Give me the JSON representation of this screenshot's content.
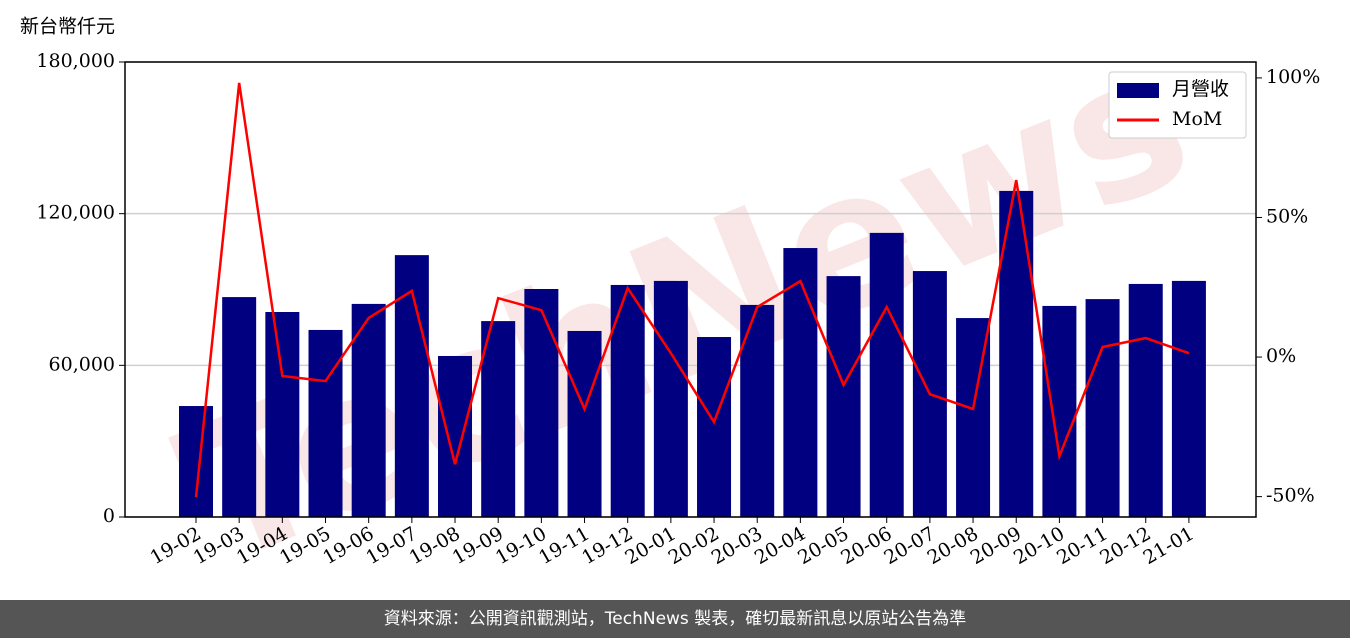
{
  "chart_data": {
    "type": "bar-line",
    "y_label": "新台幣仟元",
    "watermark": "TechNews",
    "categories": [
      "19-02",
      "19-03",
      "19-04",
      "19-05",
      "19-06",
      "19-07",
      "19-08",
      "19-09",
      "19-10",
      "19-11",
      "19-12",
      "20-01",
      "20-02",
      "20-03",
      "20-04",
      "20-05",
      "20-06",
      "20-07",
      "20-08",
      "20-09",
      "20-10",
      "20-11",
      "20-12",
      "21-01"
    ],
    "series": [
      {
        "name": "月營收",
        "type": "bar",
        "color": "#000080",
        "values": [
          43900,
          87000,
          81100,
          74000,
          84300,
          103600,
          63700,
          77500,
          90200,
          73600,
          91800,
          93400,
          71200,
          83900,
          106400,
          95300,
          112400,
          97300,
          78700,
          129000,
          83500,
          86200,
          92200,
          93400
        ]
      },
      {
        "name": "MoM",
        "type": "line",
        "axis": "y2",
        "color": "#ff0000",
        "values": [
          -50.2,
          98.2,
          -6.8,
          -8.6,
          14.0,
          23.7,
          -38.4,
          21.1,
          16.8,
          -18.6,
          24.7,
          1.4,
          -23.3,
          17.9,
          27.2,
          -10.0,
          17.9,
          -13.3,
          -18.6,
          63.4,
          -35.5,
          3.6,
          6.8,
          1.4
        ]
      }
    ],
    "ylim": [
      0,
      180000
    ],
    "yticks": [
      0,
      {
        "value": 60000,
        "label": "60,000"
      },
      {
        "value": 120000,
        "label": "120,000"
      },
      {
        "value": 180000,
        "label": "180,000"
      }
    ],
    "y2lim": [
      -57.3,
      105.7
    ],
    "y2ticks": [
      {
        "value": -50,
        "label": "-50%"
      },
      {
        "value": 0,
        "label": "0%"
      },
      {
        "value": 50,
        "label": "50%"
      },
      {
        "value": 100,
        "label": "100%"
      }
    ],
    "grid": true,
    "legend": "upper right"
  },
  "footer": "資料來源：公開資訊觀測站，TechNews 製表，確切最新訊息以原站公告為準"
}
